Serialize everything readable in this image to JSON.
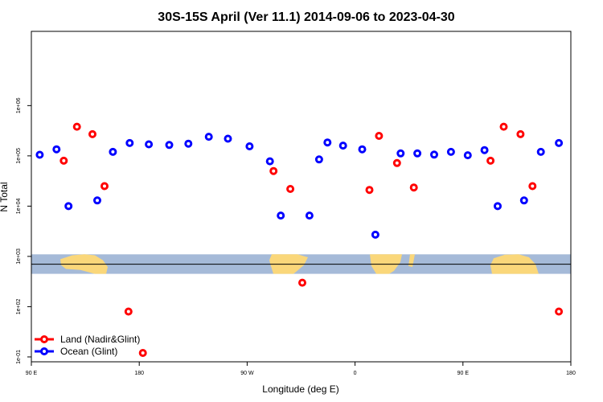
{
  "chart_data": {
    "type": "scatter",
    "title": "30S-15S April (Ver 11.1)   2014-09-06 to 2023-04-30",
    "xlabel": "Longitude (deg E)",
    "ylabel": "N Total",
    "y_scale": "log",
    "xlim": [
      90,
      540
    ],
    "ylim": [
      0.08,
      300000
    ],
    "x_ticks": [
      {
        "value": 90,
        "label": "90 E"
      },
      {
        "value": 180,
        "label": "180"
      },
      {
        "value": 270,
        "label": "90 W"
      },
      {
        "value": 360,
        "label": "0"
      },
      {
        "value": 450,
        "label": "90 E"
      },
      {
        "value": 540,
        "label": "180"
      }
    ],
    "y_ticks": [
      {
        "value": 0.1,
        "label": "1e-01"
      },
      {
        "value": 1,
        "label": "1e+02"
      },
      {
        "value": 10,
        "label": "1e+03"
      },
      {
        "value": 100,
        "label": "1e+04"
      },
      {
        "value": 1000,
        "label": "1e+05"
      },
      {
        "value": 10000,
        "label": "1e+06"
      }
    ],
    "reference_line_y": 7,
    "map_band": {
      "y_min": 4.5,
      "y_max": 11,
      "ocean_color": "#a5bad8",
      "land_color": "#fad77a"
    },
    "series": [
      {
        "name": "Land (Nadir&Glint)",
        "color": "#ff0000",
        "points": [
          {
            "x": 117,
            "y": 800
          },
          {
            "x": 128,
            "y": 3800
          },
          {
            "x": 141,
            "y": 2700
          },
          {
            "x": 151,
            "y": 250
          },
          {
            "x": 171,
            "y": 0.8
          },
          {
            "x": 183,
            "y": 0.12
          },
          {
            "x": 292,
            "y": 500
          },
          {
            "x": 306,
            "y": 220
          },
          {
            "x": 316,
            "y": 3
          },
          {
            "x": 372,
            "y": 210
          },
          {
            "x": 380,
            "y": 2500
          },
          {
            "x": 395,
            "y": 720
          },
          {
            "x": 409,
            "y": 235
          },
          {
            "x": 473,
            "y": 800
          },
          {
            "x": 484,
            "y": 3800
          },
          {
            "x": 498,
            "y": 2700
          },
          {
            "x": 508,
            "y": 250
          },
          {
            "x": 530,
            "y": 0.8
          }
        ]
      },
      {
        "name": "Ocean (Glint)",
        "color": "#0000ff",
        "points": [
          {
            "x": 97,
            "y": 1050
          },
          {
            "x": 111,
            "y": 1350
          },
          {
            "x": 121,
            "y": 100
          },
          {
            "x": 145,
            "y": 130
          },
          {
            "x": 158,
            "y": 1200
          },
          {
            "x": 172,
            "y": 1800
          },
          {
            "x": 188,
            "y": 1700
          },
          {
            "x": 205,
            "y": 1650
          },
          {
            "x": 221,
            "y": 1750
          },
          {
            "x": 238,
            "y": 2400
          },
          {
            "x": 254,
            "y": 2200
          },
          {
            "x": 272,
            "y": 1550
          },
          {
            "x": 289,
            "y": 780
          },
          {
            "x": 298,
            "y": 65
          },
          {
            "x": 322,
            "y": 65
          },
          {
            "x": 330,
            "y": 850
          },
          {
            "x": 337,
            "y": 1850
          },
          {
            "x": 350,
            "y": 1600
          },
          {
            "x": 366,
            "y": 1350
          },
          {
            "x": 377,
            "y": 27
          },
          {
            "x": 398,
            "y": 1120
          },
          {
            "x": 412,
            "y": 1120
          },
          {
            "x": 426,
            "y": 1060
          },
          {
            "x": 440,
            "y": 1200
          },
          {
            "x": 454,
            "y": 1030
          },
          {
            "x": 468,
            "y": 1300
          },
          {
            "x": 479,
            "y": 100
          },
          {
            "x": 501,
            "y": 130
          },
          {
            "x": 515,
            "y": 1200
          },
          {
            "x": 530,
            "y": 1800
          }
        ]
      }
    ],
    "legend_position": "bottom-left",
    "grid": false
  }
}
